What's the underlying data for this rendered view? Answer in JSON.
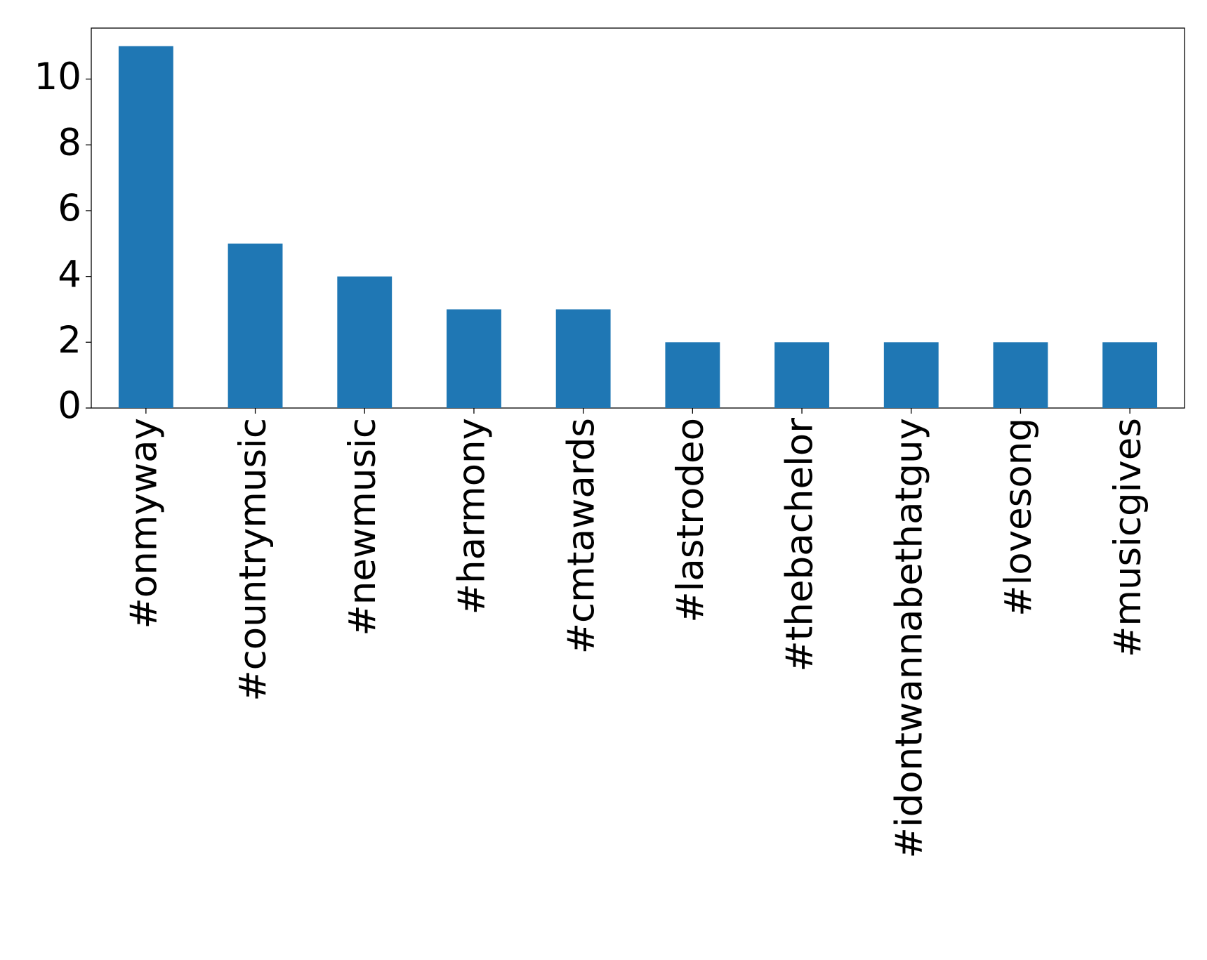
{
  "chart_data": {
    "type": "bar",
    "categories": [
      "#onmyway",
      "#countrymusic",
      "#newmusic",
      "#harmony",
      "#cmtawards",
      "#lastrodeo",
      "#thebachelor",
      "#idontwannabethatguy",
      "#lovesong",
      "#musicgives"
    ],
    "values": [
      11,
      5,
      4,
      3,
      3,
      2,
      2,
      2,
      2,
      2
    ],
    "color": "#1f77b4",
    "ylim": [
      0,
      11.55
    ],
    "yticks": [
      0,
      2,
      4,
      6,
      8,
      10
    ],
    "grid": false
  }
}
